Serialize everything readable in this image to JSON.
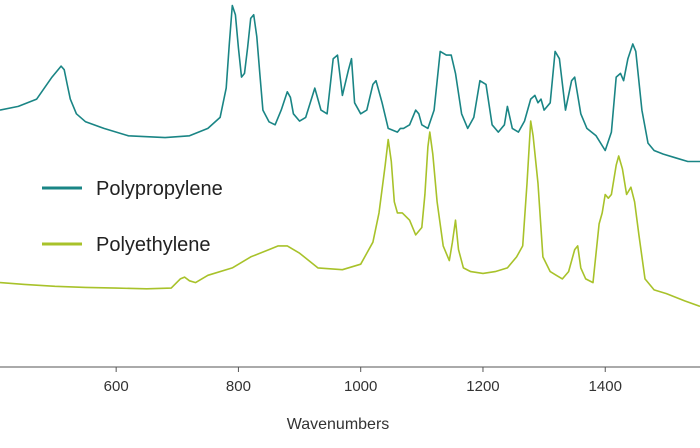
{
  "chart_data": {
    "type": "line",
    "title": "",
    "xlabel": "Wavenumbers",
    "ylabel": "",
    "xlim": [
      410,
      1555
    ],
    "ylim": [
      0,
      1
    ],
    "grid": false,
    "legend_position": "left",
    "x_ticks": [
      600,
      800,
      1000,
      1200,
      1400
    ],
    "series": [
      {
        "name": "Polypropylene",
        "color": "#1a8585",
        "x": [
          410,
          440,
          470,
          495,
          505,
          510,
          515,
          520,
          525,
          535,
          550,
          580,
          620,
          680,
          720,
          750,
          770,
          780,
          785,
          790,
          795,
          800,
          805,
          810,
          815,
          820,
          825,
          830,
          835,
          840,
          850,
          860,
          870,
          880,
          885,
          890,
          900,
          910,
          925,
          935,
          945,
          955,
          962,
          970,
          980,
          985,
          990,
          1000,
          1010,
          1020,
          1025,
          1035,
          1045,
          1060,
          1065,
          1070,
          1080,
          1090,
          1095,
          1100,
          1110,
          1120,
          1130,
          1140,
          1148,
          1155,
          1165,
          1175,
          1185,
          1195,
          1205,
          1215,
          1225,
          1235,
          1240,
          1248,
          1258,
          1268,
          1278,
          1285,
          1290,
          1295,
          1300,
          1310,
          1318,
          1325,
          1335,
          1345,
          1350,
          1360,
          1370,
          1385,
          1400,
          1410,
          1418,
          1425,
          1430,
          1437,
          1445,
          1450,
          1460,
          1470,
          1480,
          1495,
          1515,
          1535,
          1555
        ],
        "values": [
          0.7,
          0.71,
          0.73,
          0.79,
          0.81,
          0.82,
          0.81,
          0.77,
          0.73,
          0.69,
          0.668,
          0.65,
          0.63,
          0.625,
          0.63,
          0.65,
          0.68,
          0.76,
          0.88,
          0.985,
          0.96,
          0.87,
          0.79,
          0.8,
          0.87,
          0.95,
          0.96,
          0.9,
          0.8,
          0.7,
          0.668,
          0.66,
          0.7,
          0.75,
          0.735,
          0.69,
          0.67,
          0.68,
          0.76,
          0.7,
          0.69,
          0.84,
          0.85,
          0.74,
          0.81,
          0.84,
          0.72,
          0.69,
          0.7,
          0.77,
          0.78,
          0.72,
          0.65,
          0.64,
          0.65,
          0.65,
          0.66,
          0.7,
          0.69,
          0.66,
          0.65,
          0.7,
          0.86,
          0.85,
          0.85,
          0.8,
          0.69,
          0.65,
          0.68,
          0.78,
          0.77,
          0.66,
          0.64,
          0.66,
          0.71,
          0.65,
          0.64,
          0.67,
          0.73,
          0.74,
          0.72,
          0.73,
          0.7,
          0.72,
          0.86,
          0.84,
          0.7,
          0.78,
          0.79,
          0.69,
          0.65,
          0.63,
          0.59,
          0.64,
          0.79,
          0.8,
          0.78,
          0.84,
          0.88,
          0.86,
          0.7,
          0.61,
          0.59,
          0.58,
          0.57,
          0.56,
          0.56
        ]
      },
      {
        "name": "Polyethylene",
        "color": "#a8c22a",
        "x": [
          410,
          450,
          500,
          550,
          600,
          650,
          690,
          705,
          712,
          720,
          730,
          750,
          790,
          820,
          850,
          865,
          880,
          900,
          930,
          970,
          1000,
          1020,
          1030,
          1040,
          1045,
          1050,
          1055,
          1060,
          1068,
          1080,
          1090,
          1100,
          1105,
          1110,
          1113,
          1118,
          1125,
          1135,
          1145,
          1150,
          1155,
          1160,
          1168,
          1180,
          1200,
          1220,
          1240,
          1255,
          1265,
          1272,
          1278,
          1282,
          1290,
          1298,
          1310,
          1320,
          1330,
          1340,
          1350,
          1355,
          1360,
          1368,
          1380,
          1390,
          1395,
          1400,
          1405,
          1410,
          1418,
          1422,
          1428,
          1435,
          1442,
          1448,
          1455,
          1465,
          1480,
          1500,
          1530,
          1555
        ],
        "values": [
          0.23,
          0.225,
          0.22,
          0.217,
          0.215,
          0.213,
          0.215,
          0.24,
          0.245,
          0.235,
          0.23,
          0.25,
          0.27,
          0.3,
          0.32,
          0.33,
          0.33,
          0.31,
          0.27,
          0.265,
          0.28,
          0.34,
          0.42,
          0.55,
          0.62,
          0.56,
          0.45,
          0.42,
          0.42,
          0.4,
          0.36,
          0.38,
          0.47,
          0.6,
          0.64,
          0.58,
          0.45,
          0.33,
          0.29,
          0.34,
          0.4,
          0.32,
          0.27,
          0.26,
          0.255,
          0.26,
          0.27,
          0.3,
          0.33,
          0.5,
          0.67,
          0.63,
          0.5,
          0.3,
          0.26,
          0.25,
          0.24,
          0.26,
          0.32,
          0.33,
          0.27,
          0.24,
          0.23,
          0.39,
          0.42,
          0.47,
          0.46,
          0.47,
          0.55,
          0.575,
          0.54,
          0.47,
          0.49,
          0.45,
          0.36,
          0.24,
          0.21,
          0.2,
          0.18,
          0.165
        ]
      }
    ]
  }
}
